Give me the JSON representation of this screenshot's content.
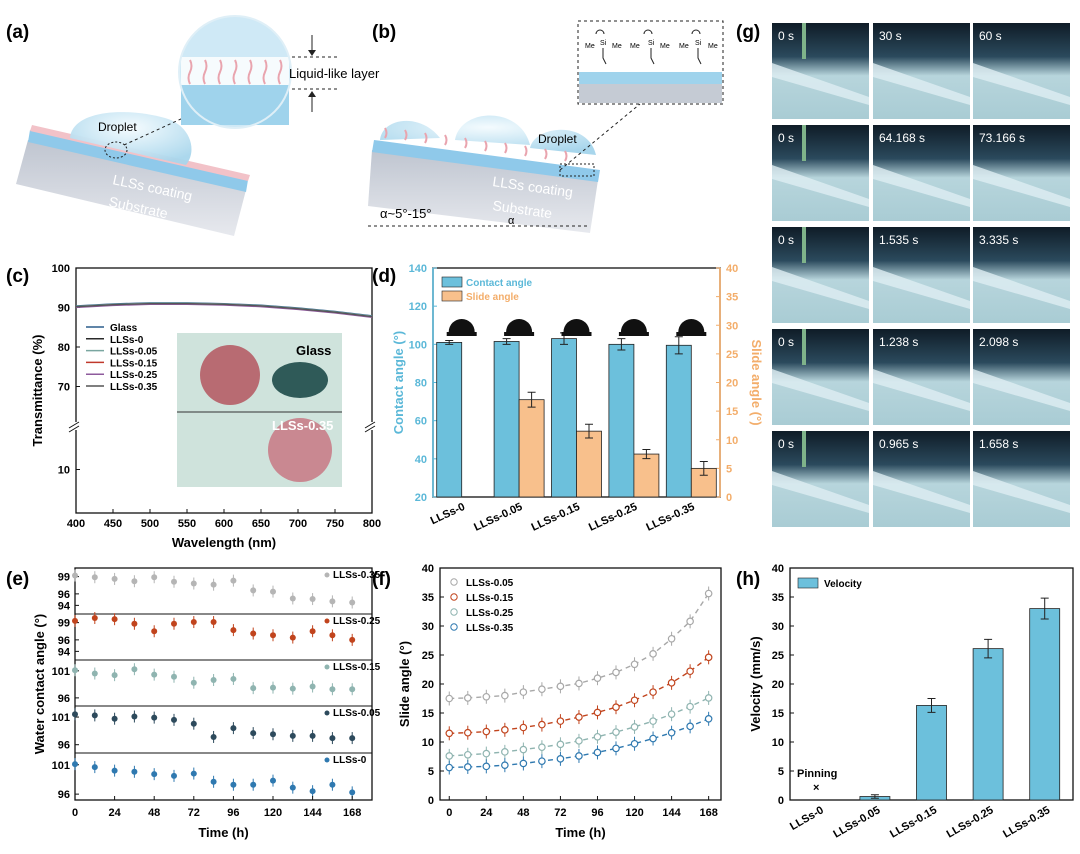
{
  "panels": {
    "a": {
      "letter": "(a)",
      "layer_label": "Liquid-like layer",
      "droplet": "Droplet",
      "coating": "LLSs coating",
      "substrate": "Substrate"
    },
    "b": {
      "letter": "(b)",
      "droplet": "Droplet",
      "coating": "LLSs coating",
      "substrate": "Substrate",
      "angle_label": "α~5°-15°",
      "alpha": "α",
      "me": "Me",
      "si": "Si"
    },
    "g": {
      "letter": "(g)",
      "rows": [
        [
          "0 s",
          "30 s",
          "60 s"
        ],
        [
          "0 s",
          "64.168 s",
          "73.166 s"
        ],
        [
          "0 s",
          "1.535 s",
          "3.335 s"
        ],
        [
          "0 s",
          "1.238 s",
          "2.098 s"
        ],
        [
          "0 s",
          "0.965 s",
          "1.658 s"
        ]
      ]
    }
  },
  "colors": {
    "bar_blue": "#6cc0dc",
    "bar_orange": "#f8c08c",
    "axis_blue": "#5bb8d8",
    "axis_orange": "#f3ad6a",
    "glass_photo": "#cfe3dc",
    "cell_bg": "#12202c",
    "cell_surface": "#b9d6dc"
  },
  "chart_data": [
    {
      "panel": "(c)",
      "type": "line",
      "xlabel": "Wavelength (nm)",
      "ylabel": "Transmittance (%)",
      "xlim": [
        400,
        800
      ],
      "xticks": [
        400,
        450,
        500,
        550,
        600,
        650,
        700,
        750,
        800
      ],
      "yticks": [
        10,
        70,
        80,
        90,
        100
      ],
      "axis_break": true,
      "x": [
        400,
        450,
        500,
        550,
        600,
        650,
        700,
        750,
        800
      ],
      "series": [
        {
          "name": "Glass",
          "values": [
            90.4,
            90.9,
            91.2,
            91.2,
            91.0,
            90.6,
            89.9,
            89.0,
            87.9
          ]
        },
        {
          "name": "LLSs-0",
          "values": [
            90.2,
            90.7,
            91.0,
            91.0,
            90.8,
            90.4,
            89.7,
            88.8,
            87.7
          ]
        },
        {
          "name": "LLSs-0.05",
          "values": [
            90.3,
            90.8,
            91.1,
            91.1,
            90.9,
            90.5,
            89.8,
            88.9,
            87.8
          ]
        },
        {
          "name": "LLSs-0.15",
          "values": [
            90.1,
            90.6,
            90.9,
            90.9,
            90.7,
            90.3,
            89.6,
            88.7,
            87.6
          ]
        },
        {
          "name": "LLSs-0.25",
          "values": [
            90.0,
            90.5,
            90.8,
            90.8,
            90.6,
            90.2,
            89.5,
            88.6,
            87.5
          ]
        },
        {
          "name": "LLSs-0.35",
          "values": [
            90.2,
            90.7,
            91.0,
            91.0,
            90.8,
            90.4,
            89.7,
            88.8,
            87.7
          ]
        }
      ],
      "inset_labels": {
        "top": "Glass",
        "bottom": "LLSs-0.35"
      }
    },
    {
      "panel": "(d)",
      "type": "bar",
      "categories": [
        "LLSs-0",
        "LLSs-0.05",
        "LLSs-0.15",
        "LLSs-0.25",
        "LLSs-0.35"
      ],
      "ylabel": "Contact angle (°)",
      "y2label": "Slide angle (°)",
      "ylim": [
        20,
        140
      ],
      "y2lim": [
        0,
        40
      ],
      "yticks": [
        20,
        40,
        60,
        80,
        100,
        120,
        140
      ],
      "y2ticks": [
        0,
        5,
        10,
        15,
        20,
        25,
        30,
        35,
        40
      ],
      "series": [
        {
          "name": "Contact angle",
          "values": [
            101,
            101.5,
            103,
            100,
            99.5
          ],
          "errors": [
            1,
            1.5,
            3,
            3,
            4.5
          ]
        },
        {
          "name": "Slide angle",
          "values": [
            null,
            17,
            11.5,
            7.5,
            5
          ],
          "errors": [
            null,
            1.3,
            1.2,
            0.8,
            1.2
          ]
        }
      ]
    },
    {
      "panel": "(e)",
      "type": "scatter",
      "xlabel": "Time (h)",
      "ylabel": "Water contact angle (°)",
      "xlim": [
        0,
        180
      ],
      "xticks": [
        0,
        24,
        48,
        72,
        96,
        120,
        144,
        168
      ],
      "x": [
        0,
        12,
        24,
        36,
        48,
        60,
        72,
        84,
        96,
        108,
        120,
        132,
        144,
        156,
        168
      ],
      "series": [
        {
          "name": "LLSs-0.35",
          "ylim": [
            92.5,
            100.5
          ],
          "yticks": [
            94,
            96,
            99
          ],
          "values": [
            99.2,
            98.9,
            98.6,
            98.2,
            98.9,
            98.1,
            97.8,
            97.6,
            98.3,
            96.6,
            96.4,
            95.2,
            95.1,
            94.7,
            94.5
          ]
        },
        {
          "name": "LLSs-0.25",
          "ylim": [
            92.5,
            100.5
          ],
          "yticks": [
            94,
            96,
            99
          ],
          "values": [
            99.3,
            99.8,
            99.6,
            98.8,
            97.5,
            98.8,
            99.1,
            99.1,
            97.7,
            97.1,
            96.8,
            96.4,
            97.5,
            96.8,
            96.0
          ]
        },
        {
          "name": "LLSs-0.15",
          "ylim": [
            94.5,
            103
          ],
          "yticks": [
            96,
            101
          ],
          "values": [
            101.1,
            100.5,
            100.2,
            101.3,
            100.3,
            99.9,
            98.8,
            99.3,
            99.5,
            97.8,
            97.9,
            97.7,
            98.1,
            97.6,
            97.6
          ]
        },
        {
          "name": "LLSs-0.05",
          "ylim": [
            94.5,
            103
          ],
          "yticks": [
            96,
            101
          ],
          "values": [
            101.5,
            101.3,
            100.7,
            101.1,
            100.9,
            100.5,
            99.8,
            97.4,
            99.0,
            98.1,
            97.9,
            97.6,
            97.6,
            97.2,
            97.2
          ]
        },
        {
          "name": "LLSs-0",
          "ylim": [
            95,
            103
          ],
          "yticks": [
            96,
            101
          ],
          "values": [
            101.1,
            100.6,
            100.0,
            99.8,
            99.4,
            99.1,
            99.5,
            98.1,
            97.6,
            97.6,
            98.3,
            97.1,
            96.5,
            97.6,
            96.3
          ]
        }
      ]
    },
    {
      "panel": "(f)",
      "type": "scatter",
      "xlabel": "Time (h)",
      "ylabel": "Slide angle (°)",
      "xlim": [
        -6,
        176
      ],
      "ylim": [
        0,
        40
      ],
      "xticks": [
        0,
        24,
        48,
        72,
        96,
        120,
        144,
        168
      ],
      "yticks": [
        0,
        5,
        10,
        15,
        20,
        25,
        30,
        35,
        40
      ],
      "x": [
        0,
        12,
        24,
        36,
        48,
        60,
        72,
        84,
        96,
        108,
        120,
        132,
        144,
        156,
        168
      ],
      "series": [
        {
          "name": "LLSs-0.05",
          "values": [
            17.5,
            17.6,
            17.8,
            18.0,
            18.6,
            19.1,
            19.6,
            20.1,
            21.0,
            22.0,
            23.4,
            25.2,
            27.8,
            30.8,
            35.6
          ]
        },
        {
          "name": "LLSs-0.15",
          "values": [
            11.5,
            11.6,
            11.8,
            12.1,
            12.5,
            13.0,
            13.6,
            14.3,
            15.1,
            16.0,
            17.2,
            18.6,
            20.2,
            22.2,
            24.6
          ]
        },
        {
          "name": "LLSs-0.25",
          "values": [
            7.6,
            7.8,
            8.0,
            8.3,
            8.7,
            9.1,
            9.6,
            10.2,
            10.9,
            11.7,
            12.6,
            13.6,
            14.8,
            16.1,
            17.6
          ]
        },
        {
          "name": "LLSs-0.35",
          "values": [
            5.6,
            5.7,
            5.8,
            6.0,
            6.3,
            6.7,
            7.1,
            7.6,
            8.2,
            8.9,
            9.7,
            10.6,
            11.6,
            12.7,
            14.0
          ]
        }
      ]
    },
    {
      "panel": "(h)",
      "type": "bar",
      "categories": [
        "LLSs-0",
        "LLSs-0.05",
        "LLSs-0.15",
        "LLSs-0.25",
        "LLSs-0.35"
      ],
      "ylabel": "Velocity (mm/s)",
      "ylim": [
        0,
        40
      ],
      "yticks": [
        0,
        5,
        10,
        15,
        20,
        25,
        30,
        35,
        40
      ],
      "series": [
        {
          "name": "Velocity",
          "values": [
            null,
            0.6,
            16.3,
            26.1,
            33.0
          ],
          "errors": [
            null,
            0.3,
            1.2,
            1.6,
            1.8
          ]
        }
      ],
      "annotations": [
        "Pinning",
        "×"
      ]
    }
  ]
}
